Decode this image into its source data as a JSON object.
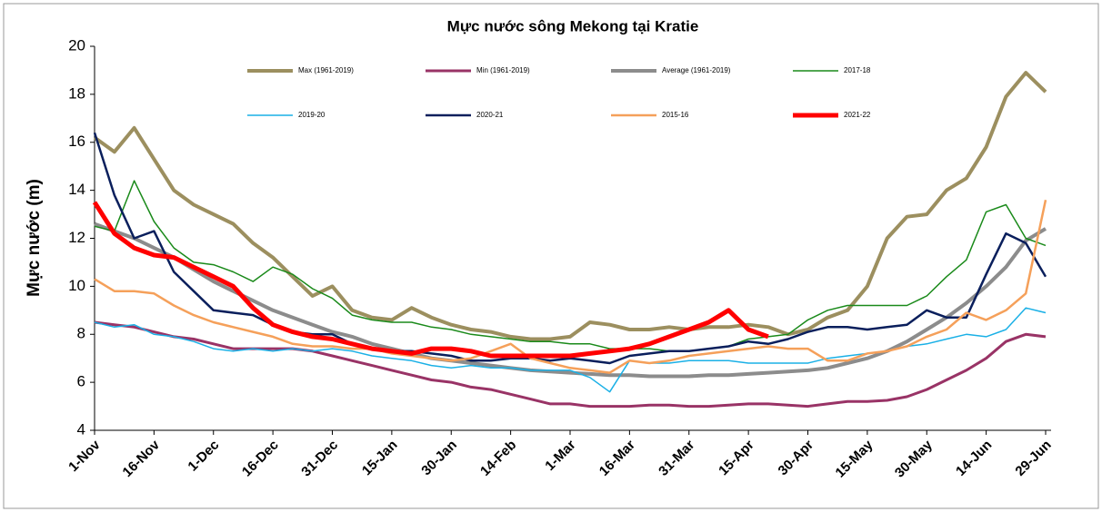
{
  "chart_data": {
    "type": "line",
    "title": "Mực nước sông Mekong tại Kratie",
    "y_label": "Mực nước (m)",
    "categories": [
      "1-Nov",
      null,
      null,
      "16-Nov",
      null,
      null,
      "1-Dec",
      null,
      null,
      "16-Dec",
      null,
      null,
      "31-Dec",
      null,
      null,
      "15-Jan",
      null,
      null,
      "30-Jan",
      null,
      null,
      "14-Feb",
      null,
      null,
      "1-Mar",
      null,
      null,
      "16-Mar",
      null,
      null,
      "31-Mar",
      null,
      null,
      "15-Apr",
      null,
      null,
      "30-Apr",
      null,
      null,
      "15-May",
      null,
      null,
      "30-May",
      null,
      null,
      "14-Jun",
      null,
      null,
      "29-Jun"
    ],
    "ylim": [
      4,
      20
    ],
    "yticks": [
      4,
      6,
      8,
      10,
      12,
      14,
      16,
      18,
      20
    ],
    "series": [
      {
        "name": "Max (1961-2019)",
        "color": "#9c8f5f",
        "values": [
          16.2,
          15.6,
          16.6,
          15.3,
          14.0,
          13.4,
          13.0,
          12.6,
          11.8,
          11.2,
          10.4,
          9.6,
          10.0,
          9.0,
          8.7,
          8.6,
          9.1,
          8.7,
          8.4,
          8.2,
          8.1,
          7.9,
          7.8,
          7.8,
          7.9,
          8.5,
          8.4,
          8.2,
          8.2,
          8.3,
          8.2,
          8.3,
          8.3,
          8.4,
          8.3,
          8.0,
          8.2,
          8.7,
          9.0,
          10.0,
          12.0,
          12.9,
          13.0,
          14.0,
          14.5,
          15.8,
          17.9,
          18.9,
          18.1
        ]
      },
      {
        "name": "Min (1961-2019)",
        "color": "#993366",
        "values": [
          8.5,
          8.4,
          8.3,
          8.1,
          7.9,
          7.8,
          7.6,
          7.4,
          7.4,
          7.4,
          7.4,
          7.3,
          7.1,
          6.9,
          6.7,
          6.5,
          6.3,
          6.1,
          6.0,
          5.8,
          5.7,
          5.5,
          5.3,
          5.1,
          5.1,
          5.0,
          5.0,
          5.0,
          5.05,
          5.05,
          5.0,
          5.0,
          5.05,
          5.1,
          5.1,
          5.05,
          5.0,
          5.1,
          5.2,
          5.2,
          5.25,
          5.4,
          5.7,
          6.1,
          6.5,
          7.0,
          7.7,
          8.0,
          7.9
        ]
      },
      {
        "name": "Average (1961-2019)",
        "color": "#8c8c8c",
        "values": [
          12.6,
          12.3,
          12.0,
          11.6,
          11.2,
          10.7,
          10.2,
          9.8,
          9.4,
          9.0,
          8.7,
          8.4,
          8.1,
          7.9,
          7.6,
          7.4,
          7.2,
          7.0,
          6.9,
          6.8,
          6.7,
          6.6,
          6.5,
          6.45,
          6.4,
          6.35,
          6.3,
          6.3,
          6.25,
          6.25,
          6.25,
          6.3,
          6.3,
          6.35,
          6.4,
          6.45,
          6.5,
          6.6,
          6.8,
          7.0,
          7.3,
          7.7,
          8.2,
          8.7,
          9.3,
          10.0,
          10.8,
          11.9,
          12.4
        ]
      },
      {
        "name": "2017-18",
        "color": "#1a8a1a",
        "values": [
          12.5,
          12.3,
          14.4,
          12.7,
          11.6,
          11.0,
          10.9,
          10.6,
          10.2,
          10.8,
          10.5,
          9.9,
          9.5,
          8.8,
          8.6,
          8.5,
          8.5,
          8.3,
          8.2,
          8.0,
          7.9,
          7.8,
          7.7,
          7.7,
          7.6,
          7.6,
          7.4,
          7.4,
          7.4,
          7.3,
          7.3,
          7.4,
          7.5,
          7.8,
          7.9,
          8.0,
          8.6,
          9.0,
          9.2,
          9.2,
          9.2,
          9.2,
          9.6,
          10.4,
          11.1,
          13.1,
          13.4,
          12.0,
          11.7
        ]
      },
      {
        "name": "2019-20",
        "color": "#1ab0e6",
        "values": [
          8.5,
          8.3,
          8.4,
          8.0,
          7.9,
          7.7,
          7.4,
          7.3,
          7.4,
          7.3,
          7.4,
          7.3,
          7.4,
          7.3,
          7.1,
          7.0,
          6.9,
          6.7,
          6.6,
          6.7,
          6.6,
          6.6,
          6.5,
          6.5,
          6.5,
          6.2,
          5.6,
          6.9,
          6.8,
          6.8,
          6.9,
          6.9,
          6.9,
          6.8,
          6.8,
          6.8,
          6.8,
          7.0,
          7.1,
          7.2,
          7.3,
          7.5,
          7.6,
          7.8,
          8.0,
          7.9,
          8.2,
          9.1,
          8.9
        ]
      },
      {
        "name": "2020-21",
        "color": "#0a1f5c",
        "values": [
          16.4,
          13.8,
          12.0,
          12.3,
          10.6,
          9.8,
          9.0,
          8.9,
          8.8,
          8.4,
          8.1,
          8.0,
          8.0,
          7.6,
          7.4,
          7.3,
          7.3,
          7.2,
          7.1,
          6.9,
          6.9,
          7.0,
          7.0,
          6.9,
          7.0,
          6.9,
          6.8,
          7.1,
          7.2,
          7.3,
          7.3,
          7.4,
          7.5,
          7.7,
          7.6,
          7.8,
          8.1,
          8.3,
          8.3,
          8.2,
          8.3,
          8.4,
          9.0,
          8.7,
          8.7,
          10.5,
          12.2,
          11.8,
          10.4
        ]
      },
      {
        "name": "2015-16",
        "color": "#f5a05a",
        "values": [
          10.3,
          9.8,
          9.8,
          9.7,
          9.2,
          8.8,
          8.5,
          8.3,
          8.1,
          7.9,
          7.6,
          7.5,
          7.5,
          7.4,
          7.4,
          7.2,
          7.1,
          7.0,
          6.9,
          7.0,
          7.3,
          7.6,
          7.0,
          6.8,
          6.6,
          6.5,
          6.4,
          6.9,
          6.8,
          6.9,
          7.1,
          7.2,
          7.3,
          7.4,
          7.5,
          7.4,
          7.4,
          6.9,
          6.9,
          7.2,
          7.3,
          7.5,
          7.9,
          8.2,
          8.9,
          8.6,
          9.0,
          9.7,
          13.6
        ]
      },
      {
        "name": "2021-22",
        "color": "#ff0000",
        "values": [
          13.5,
          12.2,
          11.6,
          11.3,
          11.2,
          10.8,
          10.4,
          10.0,
          9.1,
          8.4,
          8.1,
          7.9,
          7.8,
          7.6,
          7.4,
          7.3,
          7.2,
          7.4,
          7.4,
          7.3,
          7.1,
          7.1,
          7.1,
          7.1,
          7.1,
          7.2,
          7.3,
          7.4,
          7.6,
          7.9,
          8.2,
          8.5,
          9.0,
          8.2,
          7.9,
          null,
          null,
          null,
          null,
          null,
          null,
          null,
          null,
          null,
          null,
          null,
          null,
          null,
          null
        ]
      }
    ]
  }
}
